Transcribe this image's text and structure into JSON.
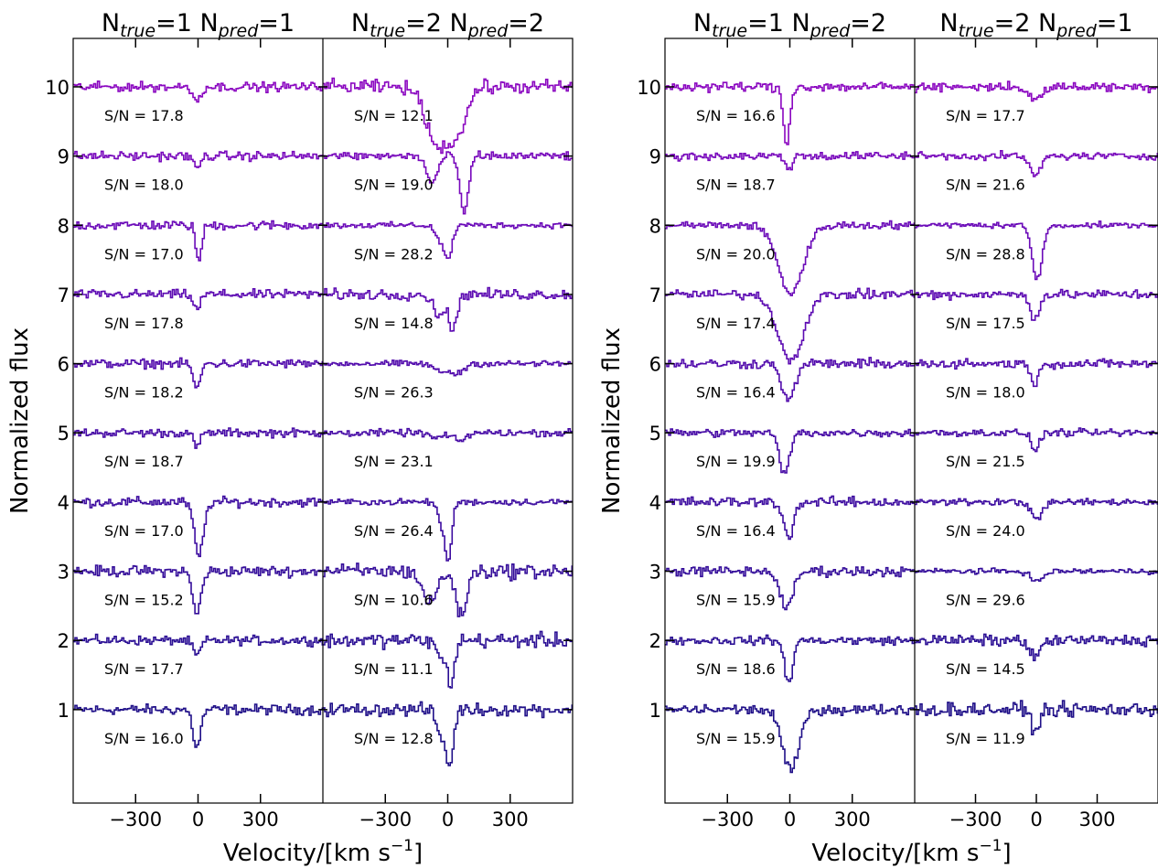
{
  "chart_data": {
    "type": "line",
    "ylabel": "Normalized flux",
    "xlabel_main": "Velocity/[km s",
    "xlabel_exp": "−1",
    "xlabel_close": "]",
    "xticks": [
      -300,
      0,
      300
    ],
    "xtick_labels": [
      "−300",
      "0",
      "300"
    ],
    "xlim": [
      -600,
      600
    ],
    "yticks": [
      1,
      2,
      3,
      4,
      5,
      6,
      7,
      8,
      9,
      10
    ],
    "ytick_labels": [
      "1",
      "2",
      "3",
      "4",
      "5",
      "6",
      "7",
      "8",
      "9",
      "10"
    ],
    "ylim": [
      -0.35,
      10.7
    ],
    "line_colors": [
      "#1f0f88",
      "#2a0e94",
      "#340d9a",
      "#3d0ca0",
      "#470ba6",
      "#510aac",
      "#5c0ab2",
      "#6a09b8",
      "#7808bc",
      "#8a06c0"
    ],
    "panels": [
      {
        "subtitle": {
          "prefix": "N",
          "sub1": "true",
          "mid": "=1 N",
          "sub2": "pred",
          "suffix": "=1"
        },
        "offsets": [
          1,
          2,
          3,
          4,
          5,
          6,
          7,
          8,
          9,
          10
        ],
        "snr_labels": [
          "S/N = 16.0",
          "S/N = 17.7",
          "S/N = 15.2",
          "S/N = 17.0",
          "S/N = 18.7",
          "S/N = 18.2",
          "S/N = 17.8",
          "S/N = 17.0",
          "S/N = 18.0",
          "S/N = 17.8"
        ],
        "absorption": [
          [
            {
              "v": -10,
              "depth": 0.55,
              "width": 18
            }
          ],
          [
            {
              "v": -10,
              "depth": 0.22,
              "width": 18
            }
          ],
          [
            {
              "v": -10,
              "depth": 0.62,
              "width": 20
            }
          ],
          [
            {
              "v": 0,
              "depth": 0.78,
              "width": 22
            }
          ],
          [
            {
              "v": -10,
              "depth": 0.2,
              "width": 16
            }
          ],
          [
            {
              "v": -10,
              "depth": 0.38,
              "width": 16
            }
          ],
          [
            {
              "v": -10,
              "depth": 0.22,
              "width": 16
            }
          ],
          [
            {
              "v": 0,
              "depth": 0.52,
              "width": 14
            }
          ],
          [
            {
              "v": -10,
              "depth": 0.18,
              "width": 16
            }
          ],
          [
            {
              "v": -10,
              "depth": 0.2,
              "width": 18
            }
          ]
        ]
      },
      {
        "subtitle": {
          "prefix": "N",
          "sub1": "true",
          "mid": "=2 N",
          "sub2": "pred",
          "suffix": "=2"
        },
        "offsets": [
          1,
          2,
          3,
          4,
          5,
          6,
          7,
          8,
          9,
          10
        ],
        "snr_labels": [
          "S/N = 12.8",
          "S/N = 11.1",
          "S/N = 10.6",
          "S/N = 26.4",
          "S/N = 23.1",
          "S/N = 26.3",
          "S/N = 14.8",
          "S/N = 28.2",
          "S/N = 19.0",
          "S/N = 12.1"
        ],
        "absorption": [
          [
            {
              "v": -40,
              "depth": 0.35,
              "width": 20
            },
            {
              "v": 5,
              "depth": 0.8,
              "width": 18
            }
          ],
          [
            {
              "v": -40,
              "depth": 0.25,
              "width": 20
            },
            {
              "v": 10,
              "depth": 0.62,
              "width": 18
            }
          ],
          [
            {
              "v": -90,
              "depth": 0.45,
              "width": 35
            },
            {
              "v": 60,
              "depth": 0.65,
              "width": 25
            }
          ],
          [
            {
              "v": -30,
              "depth": 0.3,
              "width": 20
            },
            {
              "v": 0,
              "depth": 0.75,
              "width": 16
            }
          ],
          [
            {
              "v": -60,
              "depth": 0.08,
              "width": 30
            },
            {
              "v": 50,
              "depth": 0.12,
              "width": 30
            }
          ],
          [
            {
              "v": -40,
              "depth": 0.12,
              "width": 30
            },
            {
              "v": 40,
              "depth": 0.15,
              "width": 30
            }
          ],
          [
            {
              "v": -50,
              "depth": 0.3,
              "width": 25
            },
            {
              "v": 20,
              "depth": 0.55,
              "width": 18
            }
          ],
          [
            {
              "v": -40,
              "depth": 0.22,
              "width": 22
            },
            {
              "v": 0,
              "depth": 0.45,
              "width": 18
            }
          ],
          [
            {
              "v": -80,
              "depth": 0.4,
              "width": 25
            },
            {
              "v": 75,
              "depth": 0.85,
              "width": 20
            }
          ],
          [
            {
              "v": -50,
              "depth": 0.85,
              "width": 55
            },
            {
              "v": 50,
              "depth": 0.55,
              "width": 40
            }
          ]
        ]
      },
      {
        "subtitle": {
          "prefix": "N",
          "sub1": "true",
          "mid": "=1 N",
          "sub2": "pred",
          "suffix": "=2"
        },
        "offsets": [
          1,
          2,
          3,
          4,
          5,
          6,
          7,
          8,
          9,
          10
        ],
        "snr_labels": [
          "S/N = 15.9",
          "S/N = 18.6",
          "S/N = 15.9",
          "S/N = 16.4",
          "S/N = 19.9",
          "S/N = 16.4",
          "S/N = 17.4",
          "S/N = 20.0",
          "S/N = 18.7",
          "S/N = 16.6"
        ],
        "absorption": [
          [
            {
              "v": 0,
              "depth": 0.88,
              "width": 40
            }
          ],
          [
            {
              "v": -10,
              "depth": 0.6,
              "width": 20
            }
          ],
          [
            {
              "v": -20,
              "depth": 0.55,
              "width": 30
            }
          ],
          [
            {
              "v": -10,
              "depth": 0.5,
              "width": 24
            }
          ],
          [
            {
              "v": -30,
              "depth": 0.6,
              "width": 24
            }
          ],
          [
            {
              "v": -10,
              "depth": 0.55,
              "width": 30
            }
          ],
          [
            {
              "v": 0,
              "depth": 0.95,
              "width": 60
            }
          ],
          [
            {
              "v": 0,
              "depth": 0.98,
              "width": 60
            }
          ],
          [
            {
              "v": -10,
              "depth": 0.18,
              "width": 16
            }
          ],
          [
            {
              "v": -20,
              "depth": 0.82,
              "width": 16
            }
          ]
        ]
      },
      {
        "subtitle": {
          "prefix": "N",
          "sub1": "true",
          "mid": "=2 N",
          "sub2": "pred",
          "suffix": "=1"
        },
        "offsets": [
          1,
          2,
          3,
          4,
          5,
          6,
          7,
          8,
          9,
          10
        ],
        "snr_labels": [
          "S/N = 11.9",
          "S/N = 14.5",
          "S/N = 29.6",
          "S/N = 24.0",
          "S/N = 21.5",
          "S/N = 18.0",
          "S/N = 17.5",
          "S/N = 28.8",
          "S/N = 21.6",
          "S/N = 17.7"
        ],
        "absorption": [
          [
            {
              "v": -10,
              "depth": 0.3,
              "width": 20
            }
          ],
          [
            {
              "v": -10,
              "depth": 0.25,
              "width": 25
            }
          ],
          [
            {
              "v": 0,
              "depth": 0.15,
              "width": 30
            }
          ],
          [
            {
              "v": 0,
              "depth": 0.22,
              "width": 30
            }
          ],
          [
            {
              "v": -10,
              "depth": 0.25,
              "width": 20
            }
          ],
          [
            {
              "v": -10,
              "depth": 0.28,
              "width": 20
            }
          ],
          [
            {
              "v": -10,
              "depth": 0.35,
              "width": 22
            }
          ],
          [
            {
              "v": 0,
              "depth": 0.78,
              "width": 25
            }
          ],
          [
            {
              "v": -10,
              "depth": 0.3,
              "width": 25
            }
          ],
          [
            {
              "v": -10,
              "depth": 0.2,
              "width": 30
            }
          ]
        ]
      }
    ]
  }
}
